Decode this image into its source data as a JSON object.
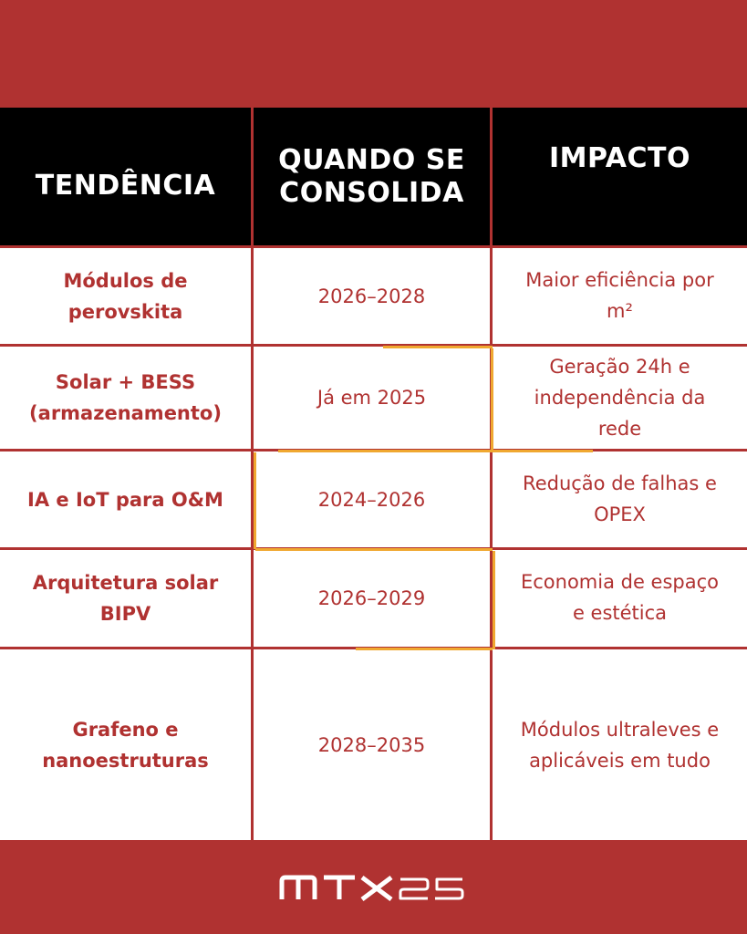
{
  "headers": {
    "trend": "TENDÊNCIA",
    "when_line1": "QUANDO SE",
    "when_line2": "CONSOLIDA",
    "impact": "IMPACTO"
  },
  "rows": [
    {
      "trend_l1": "Módulos de",
      "trend_l2": "perovskita",
      "when": "2026–2028",
      "impact_l1": "Maior eficiência por",
      "impact_l2": "m²",
      "impact_l3": ""
    },
    {
      "trend_l1": "Solar + BESS",
      "trend_l2": "(armazenamento)",
      "when": "Já em 2025",
      "impact_l1": "Geração 24h e",
      "impact_l2": "independência da",
      "impact_l3": "rede"
    },
    {
      "trend_l1": "IA e IoT para O&M",
      "trend_l2": "",
      "when": "2024–2026",
      "impact_l1": "Redução de falhas e",
      "impact_l2": "OPEX",
      "impact_l3": ""
    },
    {
      "trend_l1": "Arquitetura solar",
      "trend_l2": "BIPV",
      "when": "2026–2029",
      "impact_l1": "Economia de espaço",
      "impact_l2": "e estética",
      "impact_l3": ""
    },
    {
      "trend_l1": "Grafeno e",
      "trend_l2": "nanoestruturas",
      "when": "2028–2035",
      "impact_l1": "Módulos ultraleves e",
      "impact_l2": "aplicáveis em tudo",
      "impact_l3": ""
    }
  ],
  "footer": {
    "logo_text": "MTX25"
  },
  "colors": {
    "brand_red": "#b03231",
    "header_bg": "#000000",
    "accent_yellow": "#f0a830"
  }
}
